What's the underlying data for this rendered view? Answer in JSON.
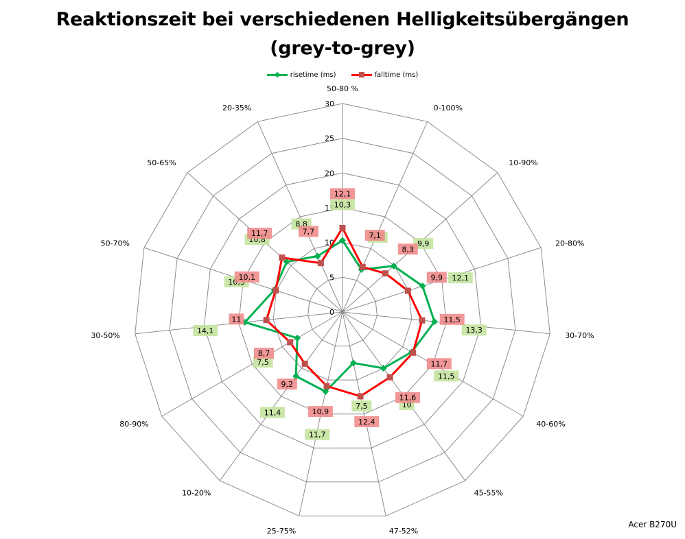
{
  "chart_data": {
    "type": "radar",
    "title": "Reaktionszeit bei verschiedenen Helligkeitsübergängen",
    "subtitle": "(grey-to-grey)",
    "categories": [
      "50-80 %",
      "0-100%",
      "10-90%",
      "20-80%",
      "30-70%",
      "40-60%",
      "45-55%",
      "47-52%",
      "25-75%",
      "10-20%",
      "80-90%",
      "30-50%",
      "50-70%",
      "50-65%",
      "20-35%"
    ],
    "rlim": [
      0,
      30
    ],
    "r_ticks": [
      "0",
      "5",
      "10",
      "15",
      "20",
      "25",
      "30"
    ],
    "grid": true,
    "legend_position": "top",
    "series": [
      {
        "name": "risetime (ms)",
        "color": "#00b050",
        "marker": "diamond",
        "label_bg": "#c4e3a0",
        "values": [
          10.3,
          6.7,
          9.9,
          12.1,
          13.3,
          11.5,
          10,
          7.5,
          11.7,
          11.4,
          7.5,
          14.1,
          10.3,
          10.8,
          8.8
        ],
        "labels": [
          "10,3",
          "6,7",
          "9,9",
          "12,1",
          "13,3",
          "11,5",
          "10",
          "7,5",
          "11,7",
          "11,4",
          "7,5",
          "14,1",
          "10,3",
          "10,8",
          "8,8"
        ]
      },
      {
        "name": "falltime (ms)",
        "color": "#ff0000",
        "marker": "square",
        "label_bg": "#f08c8c",
        "values": [
          12.1,
          7.1,
          8.3,
          9.9,
          11.5,
          11.7,
          11.6,
          12.4,
          10.9,
          9.2,
          8.7,
          11,
          10.1,
          11.7,
          7.7
        ],
        "labels": [
          "12,1",
          "7,1",
          "8,3",
          "9,9",
          "11,5",
          "11,7",
          "11,6",
          "12,4",
          "10,9",
          "9,2",
          "8,7",
          "11",
          "10,1",
          "11,7",
          "7,7"
        ]
      }
    ]
  },
  "watermark": "Acer B270U"
}
